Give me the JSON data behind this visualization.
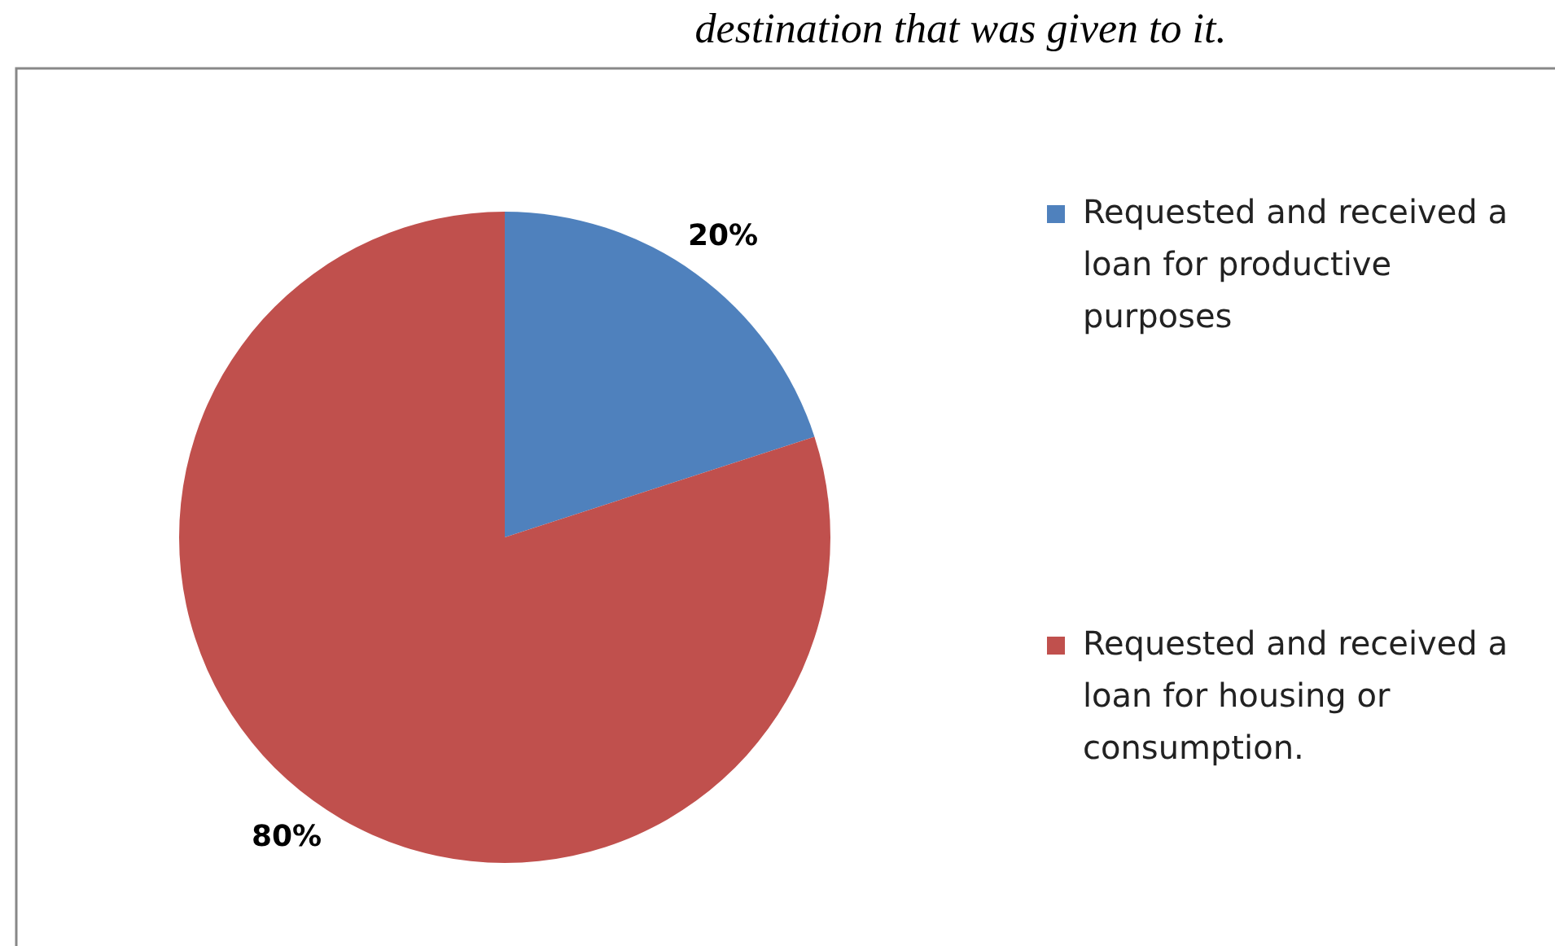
{
  "chart_data": {
    "type": "pie",
    "title": "destination that was given to it.",
    "categories": [
      "Requested and received a loan for productive purposes",
      "Requested and received a loan for housing or consumption."
    ],
    "values": [
      20,
      80
    ],
    "colors": [
      "#4f81bd",
      "#c0504d"
    ],
    "value_labels": [
      "20%",
      "80%"
    ],
    "legend": "right"
  }
}
